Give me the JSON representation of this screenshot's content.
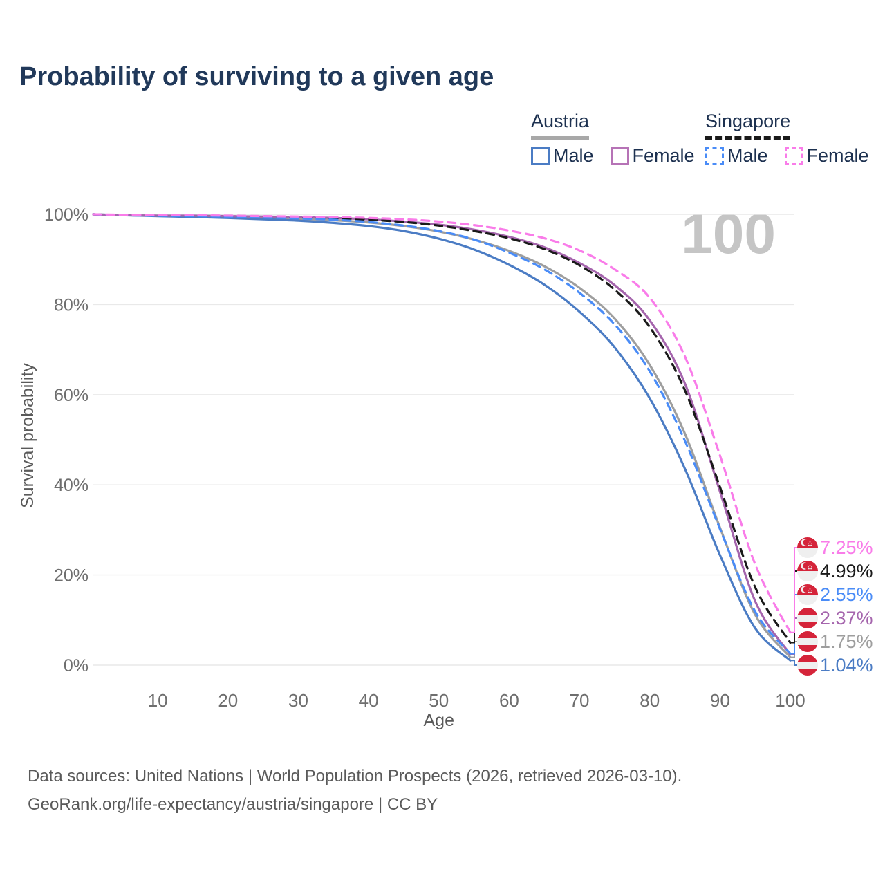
{
  "header": {
    "title": "Probability of surviving to a given age"
  },
  "legend": {
    "groups": [
      {
        "label": "Austria",
        "line_style": "solid",
        "underline_color": "#a8a8a8",
        "items": [
          {
            "label": "Male",
            "color": "#4b7cc4"
          },
          {
            "label": "Female",
            "color": "#b673b6"
          }
        ]
      },
      {
        "label": "Singapore",
        "line_style": "dashed",
        "underline_color": "#1a1a1a",
        "items": [
          {
            "label": "Male",
            "color": "#4a8cf7"
          },
          {
            "label": "Female",
            "color": "#f97ce9"
          }
        ]
      }
    ]
  },
  "watermark_age": "100",
  "chart_data": {
    "type": "line",
    "title": "Probability of surviving to a given age",
    "xlabel": "Age",
    "ylabel": "Survival probability",
    "xlim": [
      0,
      100
    ],
    "ylim": [
      0,
      100
    ],
    "xticks": [
      10,
      20,
      30,
      40,
      50,
      60,
      70,
      80,
      90,
      100
    ],
    "yticks": [
      0,
      20,
      40,
      60,
      80,
      100
    ],
    "ytick_suffix": "%",
    "grid": "horizontal",
    "legend_position": "top-right",
    "x": [
      0,
      5,
      10,
      15,
      20,
      25,
      30,
      35,
      40,
      45,
      50,
      55,
      60,
      65,
      70,
      75,
      80,
      85,
      90,
      95,
      100
    ],
    "series": [
      {
        "name": "Austria",
        "country": "austria",
        "group": "average",
        "style": "solid",
        "color": "#9e9e9e",
        "end_label": "1.75%",
        "end_value": 1.75,
        "values": [
          100,
          99.8,
          99.7,
          99.5,
          99.4,
          99.2,
          99.0,
          98.7,
          98.2,
          97.4,
          96.2,
          94.4,
          91.9,
          88.5,
          83.7,
          76.9,
          66.6,
          51.4,
          30.5,
          11.2,
          1.75
        ]
      },
      {
        "name": "Austria Male",
        "country": "austria",
        "group": "male",
        "style": "solid",
        "color": "#4b7cc4",
        "end_label": "1.04%",
        "end_value": 1.04,
        "values": [
          100,
          99.8,
          99.6,
          99.4,
          99.2,
          98.9,
          98.6,
          98.1,
          97.4,
          96.3,
          94.6,
          92.2,
          88.8,
          84.4,
          78.4,
          70.5,
          59.2,
          43.6,
          24.4,
          8.2,
          1.04
        ]
      },
      {
        "name": "Austria Female",
        "country": "austria",
        "group": "female",
        "style": "solid",
        "color": "#a565ad",
        "end_label": "2.37%",
        "end_value": 2.37,
        "values": [
          100,
          99.8,
          99.7,
          99.7,
          99.6,
          99.5,
          99.4,
          99.2,
          98.9,
          98.4,
          97.7,
          96.6,
          95.0,
          92.7,
          89.2,
          84.3,
          76.5,
          62.5,
          38.5,
          14.2,
          2.37
        ]
      },
      {
        "name": "Singapore",
        "country": "singapore",
        "group": "average",
        "style": "dashed",
        "color": "#1a1a1a",
        "end_label": "4.99%",
        "end_value": 4.99,
        "values": [
          100,
          99.8,
          99.8,
          99.7,
          99.6,
          99.5,
          99.3,
          99.1,
          98.8,
          98.3,
          97.5,
          96.3,
          94.7,
          92.3,
          88.7,
          83.3,
          75.0,
          61.0,
          39.5,
          17.3,
          4.99
        ]
      },
      {
        "name": "Singapore Male",
        "country": "singapore",
        "group": "male",
        "style": "dashed",
        "color": "#4a8cf7",
        "end_label": "2.55%",
        "end_value": 2.55,
        "values": [
          100,
          99.8,
          99.7,
          99.6,
          99.5,
          99.3,
          99.1,
          98.8,
          98.3,
          97.5,
          96.3,
          94.4,
          91.5,
          87.8,
          82.6,
          75.6,
          65.2,
          49.8,
          30.2,
          11.9,
          2.55
        ]
      },
      {
        "name": "Singapore Female",
        "country": "singapore",
        "group": "female",
        "style": "dashed",
        "color": "#f97ce9",
        "end_label": "7.25%",
        "end_value": 7.25,
        "values": [
          100,
          99.9,
          99.8,
          99.8,
          99.7,
          99.6,
          99.5,
          99.4,
          99.2,
          98.9,
          98.4,
          97.6,
          96.4,
          94.7,
          92.0,
          87.8,
          81.5,
          68.5,
          46.5,
          22.4,
          7.25
        ]
      }
    ],
    "flag_red": "#d5243a",
    "flag_white": "#efefef",
    "gridline_color": "#e9e9e9",
    "tick_color": "#6e6e6e",
    "axis_label_color": "#5a5a5a"
  },
  "footer": {
    "line1": "Data sources: United Nations | World Population Prospects (2026, retrieved 2026-03-10).",
    "line2": "GeoRank.org/life-expectancy/austria/singapore | CC BY"
  }
}
